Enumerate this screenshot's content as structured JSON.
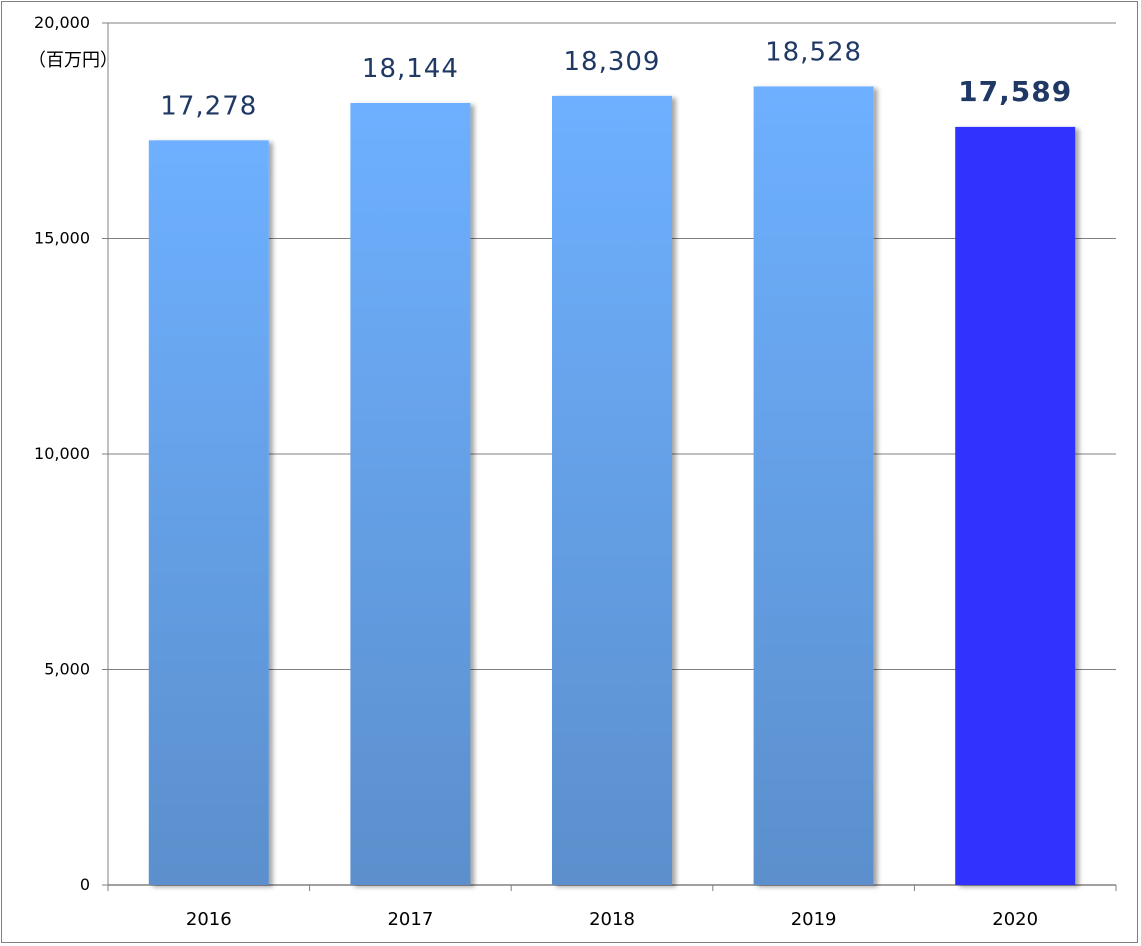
{
  "chart_data": {
    "type": "bar",
    "categories": [
      "2016",
      "2017",
      "2018",
      "2019",
      "2020"
    ],
    "values": [
      17278,
      18144,
      18309,
      18528,
      17589
    ],
    "data_labels": [
      "17,278",
      "18,144",
      "18,309",
      "18,528",
      "17,589"
    ],
    "title": "",
    "xlabel": "",
    "ylabel": "（百万円）",
    "ylim": [
      0,
      20000
    ],
    "yticks": [
      0,
      5000,
      10000,
      15000,
      20000
    ],
    "ytick_labels": [
      "0",
      "5,000",
      "10,000",
      "15,000",
      "20,000"
    ],
    "grid": true,
    "highlight_index": 4,
    "colors": {
      "bar_top": "#6eb0ff",
      "bar_bottom": "#5b8fcc",
      "highlight": "#3333ff",
      "label": "#1f3864",
      "grid": "#808080"
    }
  }
}
